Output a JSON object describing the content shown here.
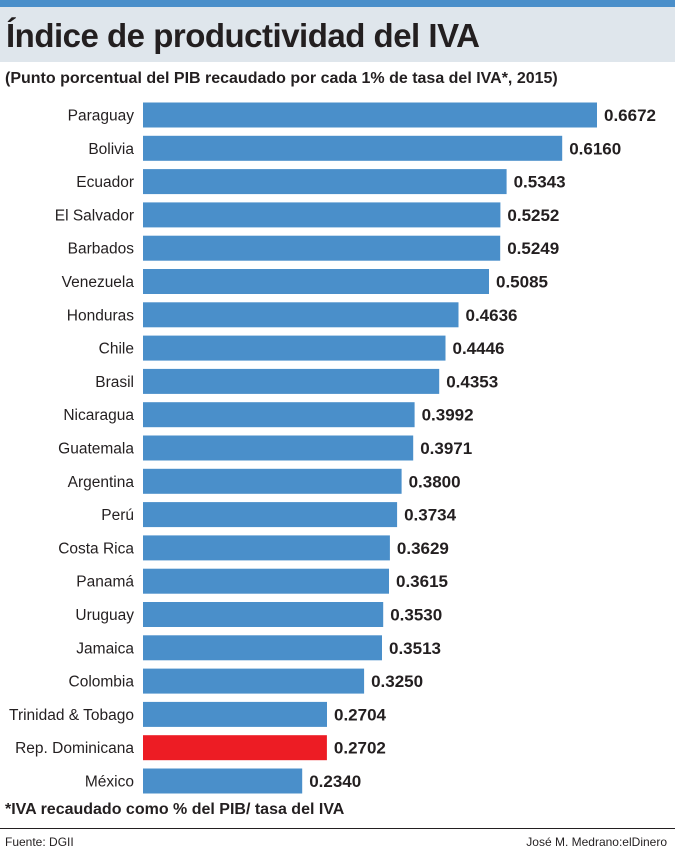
{
  "header": {
    "title": "Índice de productividad del IVA",
    "subtitle": "(Punto porcentual del PIB recaudado por cada 1% de tasa del IVA*, 2015)"
  },
  "colors": {
    "bar": "#4a8fca",
    "highlight": "#ed1c24",
    "accent_rule": "#4a8fca",
    "title_background": "#dfe6ec"
  },
  "chart_data": {
    "type": "bar",
    "orientation": "horizontal",
    "title": "Índice de productividad del IVA",
    "subtitle": "(Punto porcentual del PIB recaudado por cada 1% de tasa del IVA*, 2015)",
    "xlabel": "",
    "ylabel": "",
    "grid": false,
    "categories": [
      "Paraguay",
      "Bolivia",
      "Ecuador",
      "El Salvador",
      "Barbados",
      "Venezuela",
      "Honduras",
      "Chile",
      "Brasil",
      "Nicaragua",
      "Guatemala",
      "Argentina",
      "Perú",
      "Costa Rica",
      "Panamá",
      "Uruguay",
      "Jamaica",
      "Colombia",
      "Trinidad & Tobago",
      "Rep. Dominicana",
      "México"
    ],
    "values": [
      0.6672,
      0.616,
      0.5343,
      0.5252,
      0.5249,
      0.5085,
      0.4636,
      0.4446,
      0.4353,
      0.3992,
      0.3971,
      0.38,
      0.3734,
      0.3629,
      0.3615,
      0.353,
      0.3513,
      0.325,
      0.2704,
      0.2702,
      0.234
    ],
    "value_labels": [
      "0.6672",
      "0.6160",
      "0.5343",
      "0.5252",
      "0.5249",
      "0.5085",
      "0.4636",
      "0.4446",
      "0.4353",
      "0.3992",
      "0.3971",
      "0.3800",
      "0.3734",
      "0.3629",
      "0.3615",
      "0.3530",
      "0.3513",
      "0.3250",
      "0.2704",
      "0.2702",
      "0.2340"
    ],
    "highlight_category": "Rep. Dominicana"
  },
  "footer": {
    "note": "*IVA recaudado como % del PIB/ tasa del IVA",
    "source": "Fuente: DGII",
    "credit": "José M. Medrano:elDinero"
  }
}
